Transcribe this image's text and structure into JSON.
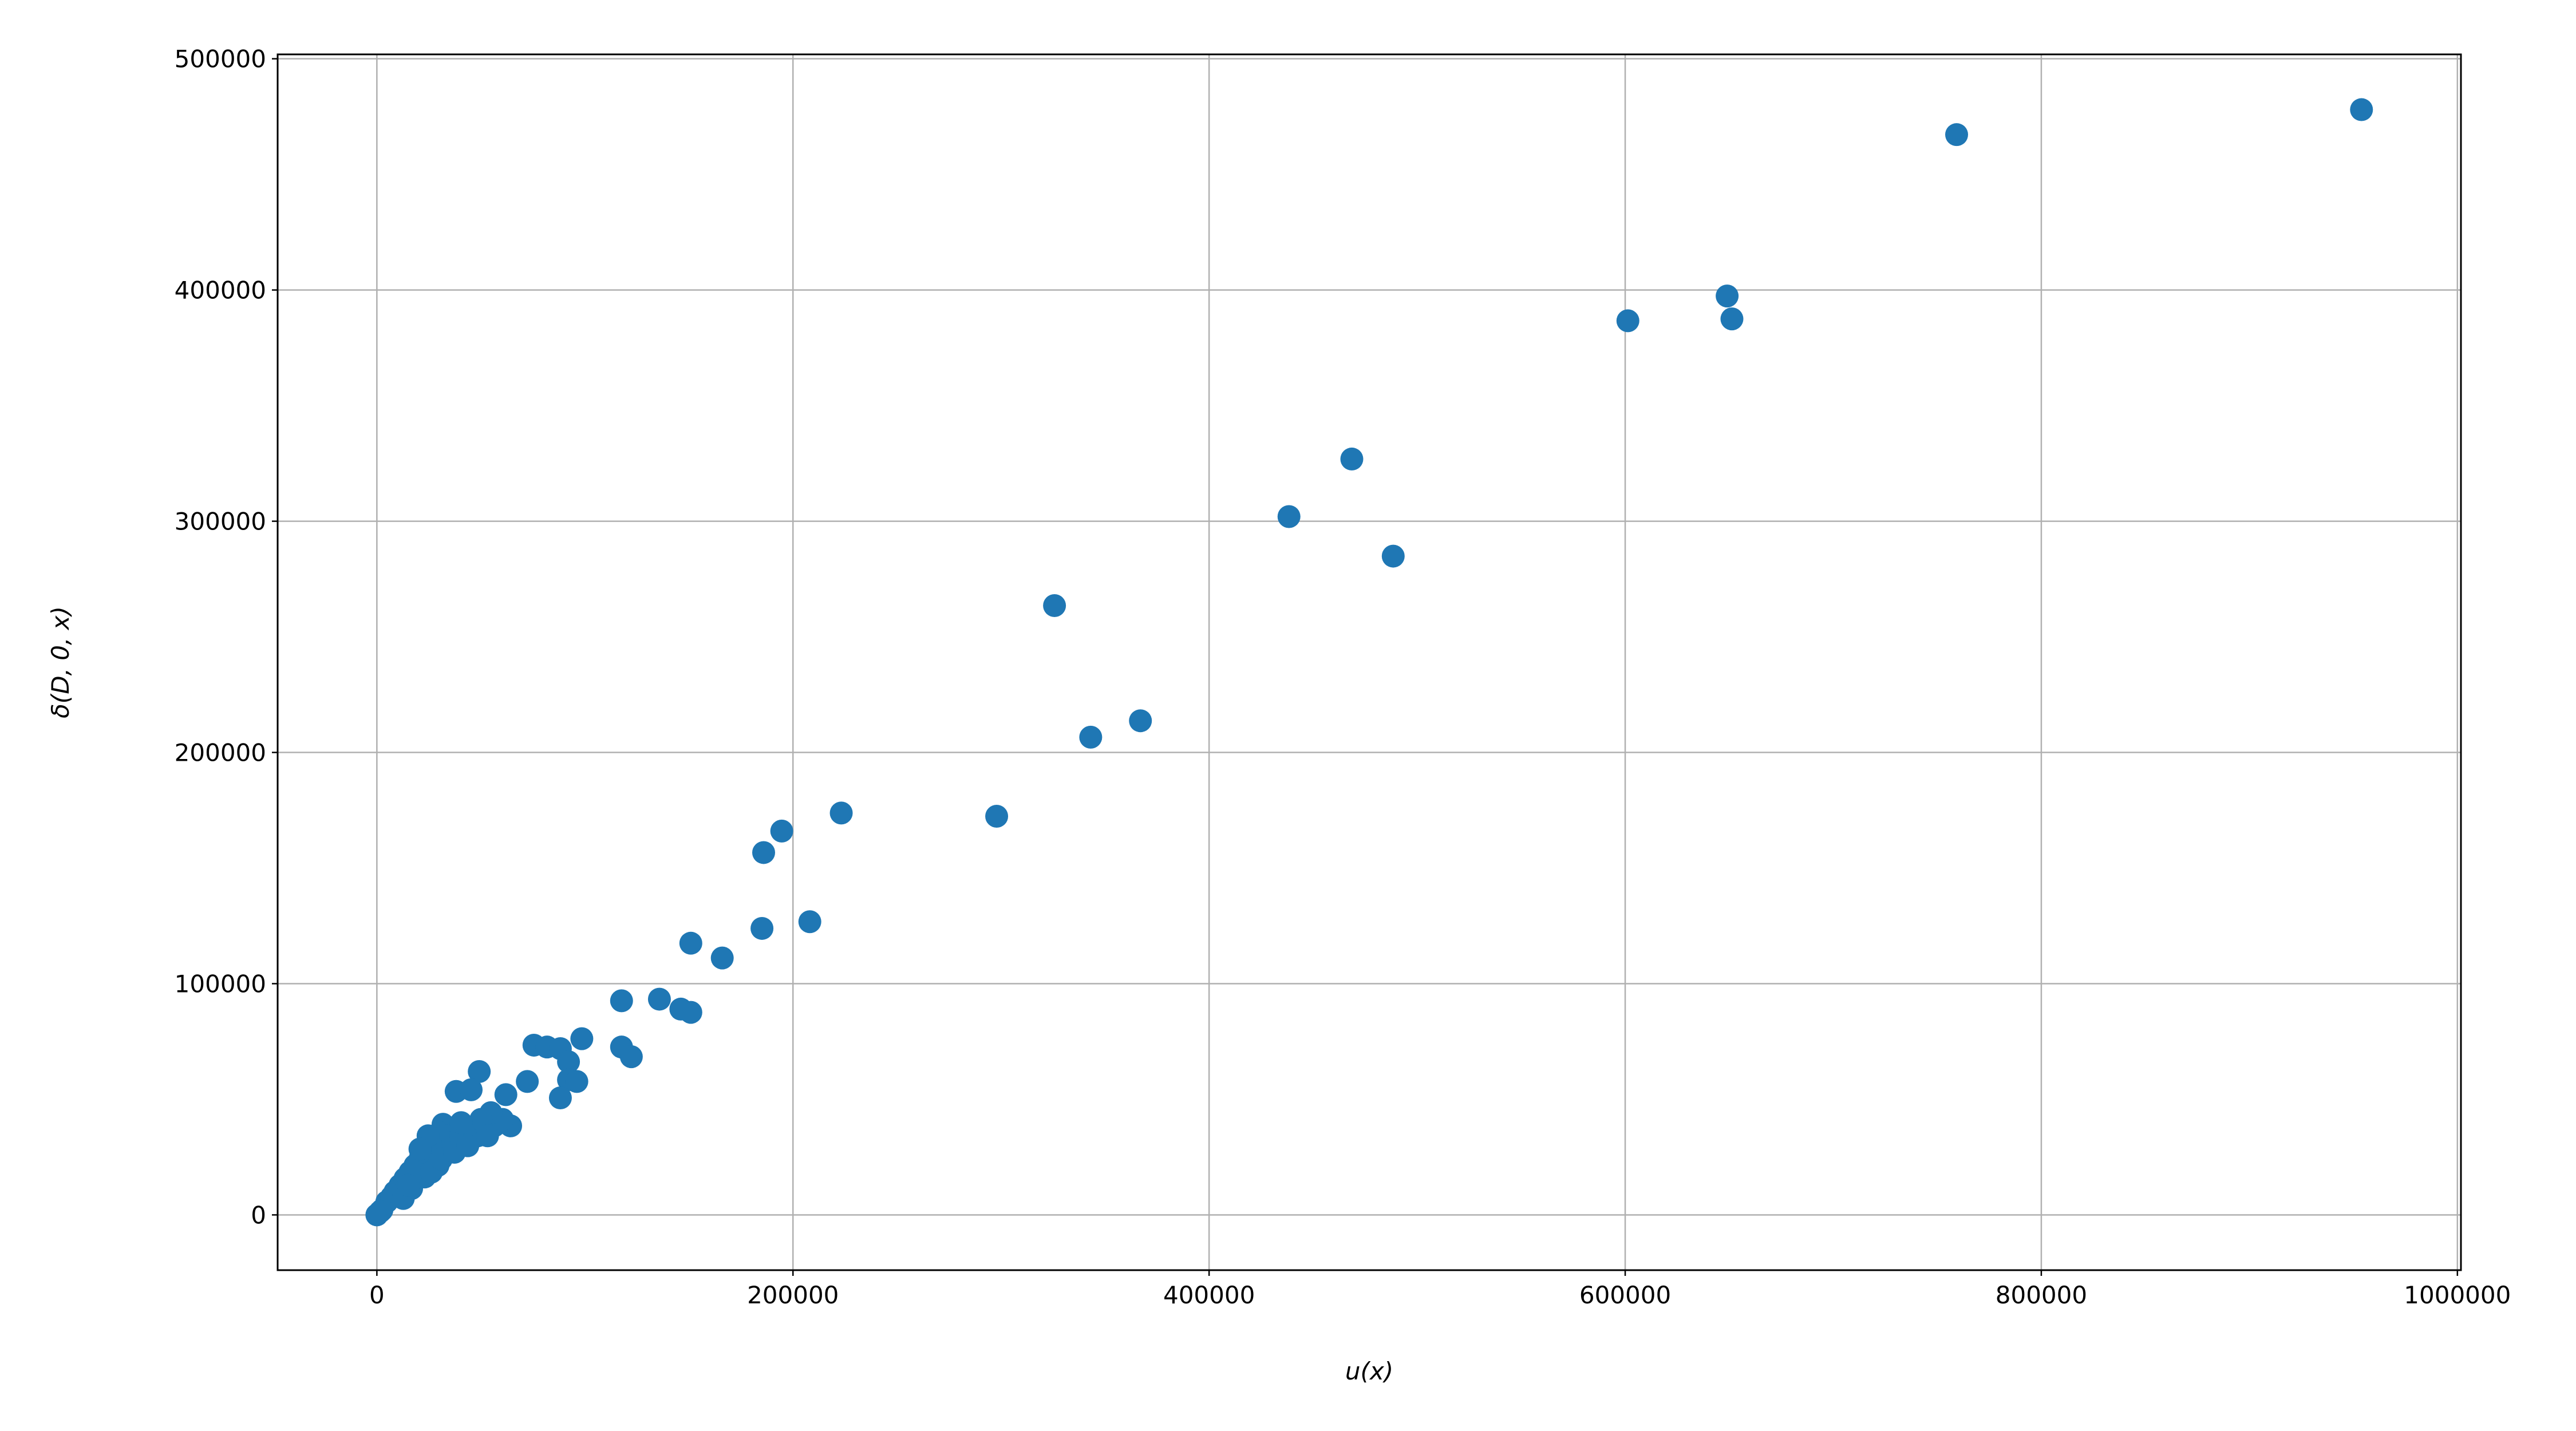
{
  "chart_data": {
    "type": "scatter",
    "xlabel": "u(x)",
    "ylabel": "δ(D, 0, x)",
    "color": "#1f77b4",
    "grid": true,
    "xlim": [
      -47700,
      1001700
    ],
    "ylim": [
      -23900,
      501900
    ],
    "xticks": [
      0,
      200000,
      400000,
      600000,
      800000,
      1000000
    ],
    "yticks": [
      0,
      100000,
      200000,
      300000,
      400000,
      500000
    ],
    "x": [
      953900,
      759300,
      649000,
      651300,
      601300,
      468600,
      438400,
      488500,
      325700,
      367000,
      343100,
      223200,
      297900,
      194600,
      185900,
      208100,
      185100,
      150900,
      166000,
      135800,
      117600,
      146100,
      150900,
      98500,
      75500,
      81800,
      88200,
      117600,
      122300,
      92100,
      49200,
      92100,
      72300,
      96100,
      38100,
      45300,
      62000,
      88200,
      64300,
      31800,
      2400,
      4800,
      7100,
      8700,
      11100,
      13500,
      15900,
      18300,
      20700,
      23000,
      25400,
      27800,
      30200,
      32600,
      36500,
      40500,
      44500,
      48500,
      52400,
      56400,
      60400,
      54800,
      50000,
      40500,
      34200,
      29400,
      23000,
      16700,
      12700,
      24600,
      20700,
      15100,
      26200,
      31000,
      37300,
      43700,
      53200,
      0,
      1600
    ],
    "values": [
      478000,
      467200,
      397400,
      387500,
      386700,
      326900,
      302000,
      284900,
      263500,
      213700,
      206600,
      173800,
      172400,
      166000,
      156700,
      126800,
      123900,
      117500,
      111100,
      93300,
      92600,
      89000,
      87600,
      76200,
      73400,
      72600,
      71900,
      72600,
      68400,
      66200,
      62000,
      58400,
      57700,
      57700,
      53400,
      54100,
      52000,
      50600,
      38500,
      39200,
      2100,
      5700,
      7800,
      10000,
      12800,
      15700,
      18500,
      21400,
      24200,
      27100,
      29900,
      32800,
      35600,
      34200,
      31300,
      34200,
      37000,
      34200,
      37000,
      38500,
      41300,
      44200,
      41300,
      39900,
      27100,
      21400,
      16400,
      11400,
      7100,
      34200,
      28500,
      12800,
      18500,
      24200,
      27100,
      29900,
      34200,
      0,
      1400
    ]
  }
}
